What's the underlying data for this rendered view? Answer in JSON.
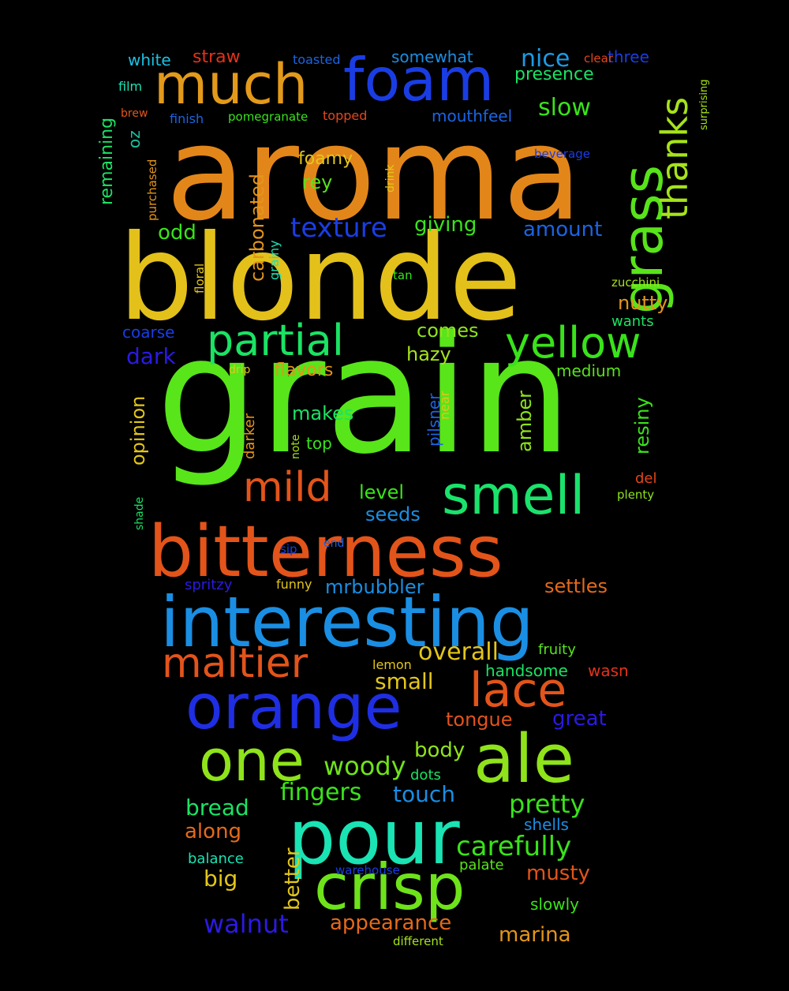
{
  "background_color": "#000000",
  "words": [
    {
      "text": "grain",
      "color": "#58e51a"
    },
    {
      "text": "aroma",
      "color": "#e3861a"
    },
    {
      "text": "blonde",
      "color": "#e3c11a"
    },
    {
      "text": "bitterness",
      "color": "#e3541a"
    },
    {
      "text": "interesting",
      "color": "#1a8ee3"
    },
    {
      "text": "pour",
      "color": "#1ae3b4"
    },
    {
      "text": "orange",
      "color": "#1f2ee3"
    },
    {
      "text": "ale",
      "color": "#8fe31a"
    },
    {
      "text": "crisp",
      "color": "#6ee31a"
    },
    {
      "text": "much",
      "color": "#e39a1a"
    },
    {
      "text": "foam",
      "color": "#1a3de3"
    },
    {
      "text": "grass",
      "color": "#58e31a"
    },
    {
      "text": "one",
      "color": "#8fe31a"
    },
    {
      "text": "smell",
      "color": "#1ae36c"
    },
    {
      "text": "lace",
      "color": "#e3541a"
    },
    {
      "text": "maltier",
      "color": "#e3541a"
    },
    {
      "text": "mild",
      "color": "#e3541a"
    },
    {
      "text": "partial",
      "color": "#1ae364"
    },
    {
      "text": "yellow",
      "color": "#39e31a"
    },
    {
      "text": "thanks",
      "color": "#a6e31a"
    },
    {
      "text": "texture",
      "color": "#1a3de3"
    },
    {
      "text": "overall",
      "color": "#e3c61a"
    },
    {
      "text": "woody",
      "color": "#6ee31a"
    },
    {
      "text": "pretty",
      "color": "#39e31a"
    },
    {
      "text": "fingers",
      "color": "#39e31a"
    },
    {
      "text": "carefully",
      "color": "#39e31a"
    },
    {
      "text": "walnut",
      "color": "#2b1ae3"
    },
    {
      "text": "appearance",
      "color": "#e36a1a"
    },
    {
      "text": "marina",
      "color": "#e3951a"
    },
    {
      "text": "nice",
      "color": "#1a9ce3"
    },
    {
      "text": "slow",
      "color": "#39e31a"
    },
    {
      "text": "presence",
      "color": "#1ae364"
    },
    {
      "text": "mouthfeel",
      "color": "#1a64e3"
    },
    {
      "text": "somewhat",
      "color": "#1a8ee3"
    },
    {
      "text": "white",
      "color": "#1ac1e3"
    },
    {
      "text": "straw",
      "color": "#e3321a"
    },
    {
      "text": "toasted",
      "color": "#1a64e3"
    },
    {
      "text": "three",
      "color": "#1a3de3"
    },
    {
      "text": "clear",
      "color": "#e3461a"
    },
    {
      "text": "surprising",
      "color": "#a6e31a"
    },
    {
      "text": "remaining",
      "color": "#1ae364"
    },
    {
      "text": "oz",
      "color": "#1ac1a0"
    },
    {
      "text": "film",
      "color": "#1ae3b4"
    },
    {
      "text": "brew",
      "color": "#e3541a"
    },
    {
      "text": "finish",
      "color": "#1a64e3"
    },
    {
      "text": "pomegranate",
      "color": "#39e31a"
    },
    {
      "text": "topped",
      "color": "#e3461a"
    },
    {
      "text": "beverage",
      "color": "#1a3de3"
    },
    {
      "text": "purchased",
      "color": "#e3951a"
    },
    {
      "text": "carbonated",
      "color": "#e3951a"
    },
    {
      "text": "foamy",
      "color": "#e3c61a"
    },
    {
      "text": "rey",
      "color": "#58e31a"
    },
    {
      "text": "drink",
      "color": "#e3c61a"
    },
    {
      "text": "giving",
      "color": "#39e31a"
    },
    {
      "text": "amount",
      "color": "#1a64e3"
    },
    {
      "text": "odd",
      "color": "#39e31a"
    },
    {
      "text": "grainy",
      "color": "#1ae3b4"
    },
    {
      "text": "floral",
      "color": "#e3c61a"
    },
    {
      "text": "tan",
      "color": "#39e31a"
    },
    {
      "text": "zucchini",
      "color": "#a6e31a"
    },
    {
      "text": "nutty",
      "color": "#e3951a"
    },
    {
      "text": "wants",
      "color": "#1ae364"
    },
    {
      "text": "comes",
      "color": "#8fe31a"
    },
    {
      "text": "coarse",
      "color": "#1a3de3"
    },
    {
      "text": "dark",
      "color": "#2b1ae3"
    },
    {
      "text": "hazy",
      "color": "#a6e31a"
    },
    {
      "text": "flavors",
      "color": "#e3951a"
    },
    {
      "text": "drip",
      "color": "#e3c61a"
    },
    {
      "text": "medium",
      "color": "#58e31a"
    },
    {
      "text": "opinion",
      "color": "#e3c61a"
    },
    {
      "text": "darker",
      "color": "#e3951a"
    },
    {
      "text": "makes",
      "color": "#1ae364"
    },
    {
      "text": "pilsner",
      "color": "#1a64e3"
    },
    {
      "text": "near",
      "color": "#e3c61a"
    },
    {
      "text": "amber",
      "color": "#8fe31a"
    },
    {
      "text": "resiny",
      "color": "#39e31a"
    },
    {
      "text": "note",
      "color": "#a6e31a"
    },
    {
      "text": "top",
      "color": "#39e31a"
    },
    {
      "text": "level",
      "color": "#39e31a"
    },
    {
      "text": "seeds",
      "color": "#1a8ee3"
    },
    {
      "text": "del",
      "color": "#e3461a"
    },
    {
      "text": "plenty",
      "color": "#8fe31a"
    },
    {
      "text": "shade",
      "color": "#1ae364"
    },
    {
      "text": "sip",
      "color": "#1a3de3"
    },
    {
      "text": "end",
      "color": "#1a64e3"
    },
    {
      "text": "spritzy",
      "color": "#2b1ae3"
    },
    {
      "text": "funny",
      "color": "#e3c61a"
    },
    {
      "text": "mrbubbler",
      "color": "#1a8ee3"
    },
    {
      "text": "settles",
      "color": "#e36a1a"
    },
    {
      "text": "lemon",
      "color": "#e3c61a"
    },
    {
      "text": "fruity",
      "color": "#58e31a"
    },
    {
      "text": "handsome",
      "color": "#1ae364"
    },
    {
      "text": "wasn",
      "color": "#e3321a"
    },
    {
      "text": "small",
      "color": "#e3c61a"
    },
    {
      "text": "tongue",
      "color": "#e3541a"
    },
    {
      "text": "great",
      "color": "#2b1ae3"
    },
    {
      "text": "body",
      "color": "#8fe31a"
    },
    {
      "text": "dots",
      "color": "#1ae364"
    },
    {
      "text": "touch",
      "color": "#1a8ee3"
    },
    {
      "text": "bread",
      "color": "#1ae364"
    },
    {
      "text": "along",
      "color": "#e36a1a"
    },
    {
      "text": "better",
      "color": "#e3c61a"
    },
    {
      "text": "shells",
      "color": "#1a8ee3"
    },
    {
      "text": "balance",
      "color": "#1ae3b4"
    },
    {
      "text": "warehouse",
      "color": "#1a3de3"
    },
    {
      "text": "palate",
      "color": "#58e31a"
    },
    {
      "text": "musty",
      "color": "#e3541a"
    },
    {
      "text": "big",
      "color": "#e3c61a"
    },
    {
      "text": "slowly",
      "color": "#39e31a"
    },
    {
      "text": "different",
      "color": "#a6e31a"
    }
  ]
}
